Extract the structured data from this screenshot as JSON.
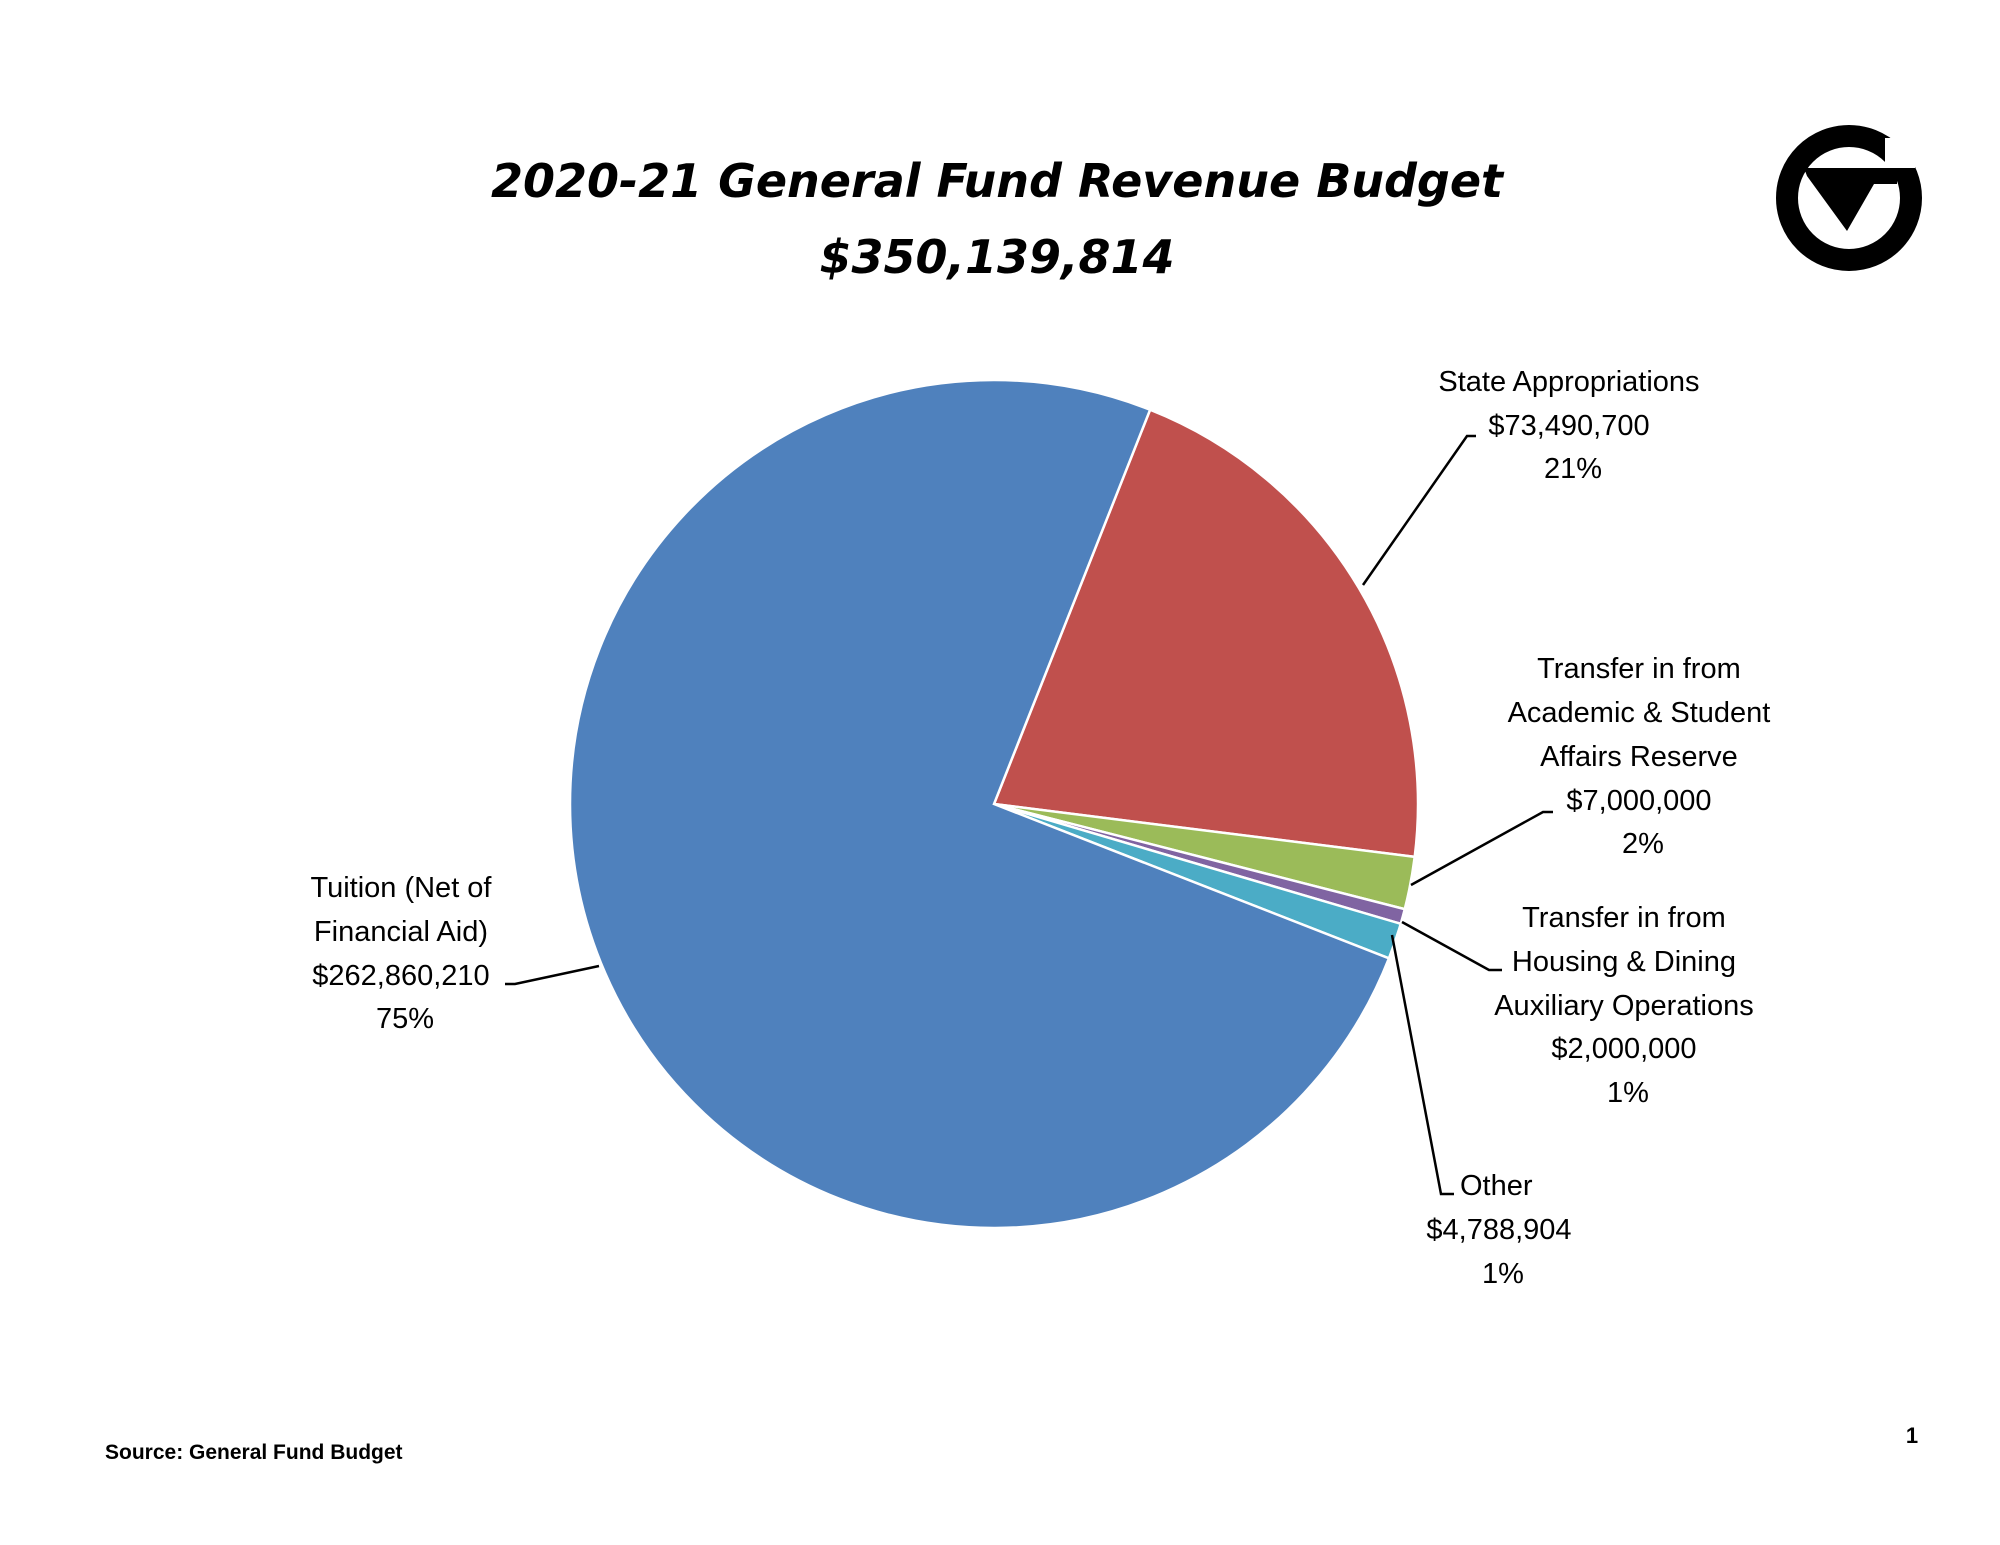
{
  "chart_data": {
    "type": "pie",
    "title": "2020-21 General Fund Revenue Budget",
    "subtitle": "$350,139,814",
    "slices": [
      {
        "name": "State Appropriations",
        "label_lines": [
          "State Appropriations"
        ],
        "amount": "$73,490,700",
        "value": 73490700,
        "percent": "21%",
        "color": "#C0504D"
      },
      {
        "name": "Transfer in from Academic & Student Affairs Reserve",
        "label_lines": [
          "Transfer in from",
          "Academic & Student",
          "Affairs Reserve"
        ],
        "amount": "$7,000,000",
        "value": 7000000,
        "percent": "2%",
        "color": "#9BBB59"
      },
      {
        "name": "Transfer in from Housing & Dining Auxiliary Operations",
        "label_lines": [
          "Transfer in from",
          "Housing & Dining",
          "Auxiliary Operations"
        ],
        "amount": "$2,000,000",
        "value": 2000000,
        "percent": "1%",
        "color": "#8064A2"
      },
      {
        "name": "Other",
        "label_lines": [
          "Other"
        ],
        "amount": "$4,788,904",
        "value": 4788904,
        "percent": "1%",
        "color": "#4BACC6"
      },
      {
        "name": "Tuition (Net of Financial Aid)",
        "label_lines": [
          "Tuition (Net of",
          "Financial Aid)"
        ],
        "amount": "$262,860,210",
        "value": 262860210,
        "percent": "75%",
        "color": "#4F81BD"
      }
    ]
  },
  "footer": {
    "source": "Source: General Fund Budget",
    "page_number": "1"
  },
  "logo": {
    "icon": "gv-circle-logo"
  }
}
